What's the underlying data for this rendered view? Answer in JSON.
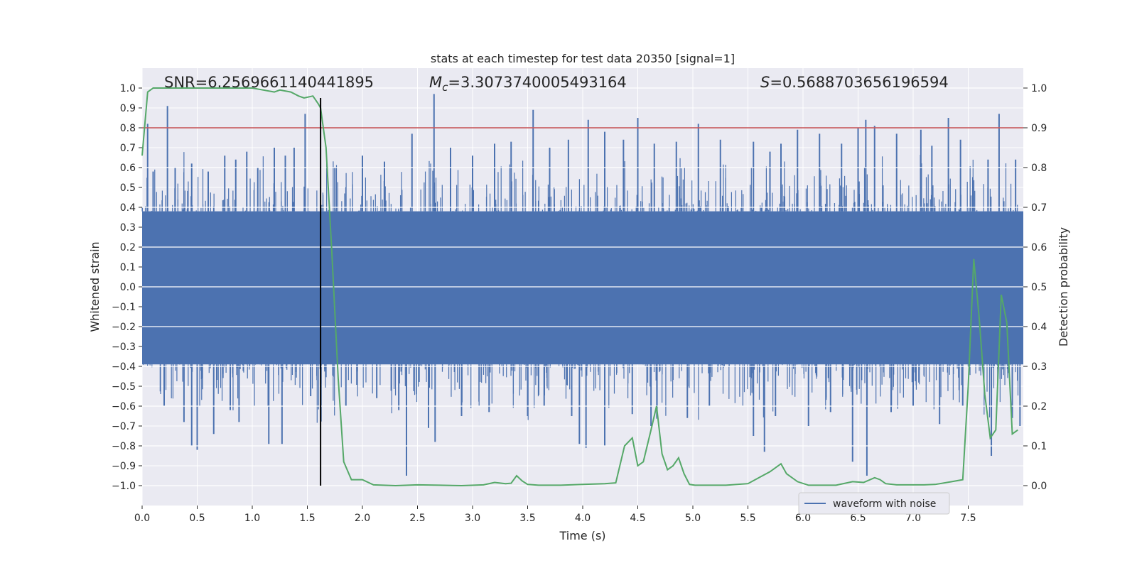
{
  "chart_data": {
    "type": "line",
    "title": "stats at each timestep for test data 20350 [signal=1]",
    "xlabel": "Time (s)",
    "ylabel": "Whitened strain",
    "y2label": "Detection probability",
    "xlim": [
      0.0,
      8.0
    ],
    "ylim": [
      -1.1,
      1.1
    ],
    "y2lim": [
      -0.05,
      1.05
    ],
    "xticks": [
      "0.0",
      "0.5",
      "1.0",
      "1.5",
      "2.0",
      "2.5",
      "3.0",
      "3.5",
      "4.0",
      "4.5",
      "5.0",
      "5.5",
      "6.0",
      "6.5",
      "7.0",
      "7.5"
    ],
    "yticks": [
      "1.0",
      "0.9",
      "0.8",
      "0.7",
      "0.6",
      "0.5",
      "0.4",
      "0.3",
      "0.2",
      "0.1",
      "0.0",
      "−0.1",
      "−0.2",
      "−0.3",
      "−0.4",
      "−0.5",
      "−0.6",
      "−0.7",
      "−0.8",
      "−0.9",
      "−1.0"
    ],
    "y2ticks": [
      "1.0",
      "0.9",
      "0.8",
      "0.7",
      "0.6",
      "0.5",
      "0.4",
      "0.3",
      "0.2",
      "0.1",
      "0.0"
    ],
    "annotations": {
      "snr": "SNR=6.2569661140441895",
      "mc_symbol": "M",
      "mc_sub": "c",
      "mc_value": "=3.3073740005493164",
      "s_symbol": "S",
      "s_value": "=0.5688703656196594"
    },
    "threshold": {
      "y2": 0.9,
      "color": "#c44e52"
    },
    "marker_time": 1.62,
    "legend": {
      "entries": [
        "waveform with noise"
      ],
      "placement": "lower-right"
    },
    "grid": true,
    "series": [
      {
        "name": "waveform with noise",
        "color": "#4c72b0",
        "rendering": "dense noise band",
        "band_upper": 0.38,
        "band_lower": -0.39,
        "spikes": [
          [
            0.05,
            0.82
          ],
          [
            0.1,
            0.58
          ],
          [
            0.23,
            0.91
          ],
          [
            0.3,
            0.6
          ],
          [
            0.45,
            0.62
          ],
          [
            0.6,
            0.58
          ],
          [
            0.75,
            0.66
          ],
          [
            0.85,
            0.64
          ],
          [
            0.95,
            0.68
          ],
          [
            1.05,
            0.6
          ],
          [
            1.2,
            0.7
          ],
          [
            1.3,
            0.66
          ],
          [
            1.38,
            0.7
          ],
          [
            1.48,
            0.87
          ],
          [
            1.75,
            0.6
          ],
          [
            2.0,
            0.66
          ],
          [
            2.2,
            0.63
          ],
          [
            2.45,
            0.77
          ],
          [
            2.65,
            0.97
          ],
          [
            2.8,
            0.7
          ],
          [
            3.0,
            0.66
          ],
          [
            3.2,
            0.72
          ],
          [
            3.35,
            0.73
          ],
          [
            3.55,
            0.89
          ],
          [
            3.7,
            0.7
          ],
          [
            3.87,
            0.74
          ],
          [
            4.05,
            0.84
          ],
          [
            4.2,
            0.78
          ],
          [
            4.37,
            0.74
          ],
          [
            4.5,
            0.85
          ],
          [
            4.65,
            0.72
          ],
          [
            4.85,
            0.73
          ],
          [
            5.05,
            0.82
          ],
          [
            5.25,
            0.74
          ],
          [
            5.55,
            0.73
          ],
          [
            5.7,
            0.68
          ],
          [
            5.8,
            0.72
          ],
          [
            5.95,
            0.79
          ],
          [
            6.15,
            0.77
          ],
          [
            6.35,
            0.72
          ],
          [
            6.5,
            0.8
          ],
          [
            6.57,
            0.84
          ],
          [
            6.65,
            0.81
          ],
          [
            6.85,
            0.77
          ],
          [
            7.07,
            0.79
          ],
          [
            7.17,
            0.71
          ],
          [
            7.32,
            0.85
          ],
          [
            7.43,
            0.74
          ],
          [
            7.68,
            0.64
          ],
          [
            7.78,
            0.87
          ],
          [
            7.93,
            0.64
          ],
          [
            0.2,
            -0.6
          ],
          [
            0.38,
            -0.68
          ],
          [
            0.45,
            -0.8
          ],
          [
            0.5,
            -0.82
          ],
          [
            0.65,
            -0.74
          ],
          [
            0.8,
            -0.62
          ],
          [
            0.88,
            -0.68
          ],
          [
            1.15,
            -0.79
          ],
          [
            1.27,
            -0.79
          ],
          [
            1.53,
            -0.55
          ],
          [
            1.85,
            -0.6
          ],
          [
            2.13,
            -0.56
          ],
          [
            2.33,
            -0.62
          ],
          [
            2.4,
            -0.95
          ],
          [
            2.6,
            -0.71
          ],
          [
            2.66,
            -0.78
          ],
          [
            2.9,
            -0.65
          ],
          [
            3.15,
            -0.63
          ],
          [
            3.5,
            -0.65
          ],
          [
            3.65,
            -0.6
          ],
          [
            3.9,
            -0.65
          ],
          [
            3.97,
            -0.79
          ],
          [
            4.03,
            -0.81
          ],
          [
            4.2,
            -0.8
          ],
          [
            4.45,
            -0.64
          ],
          [
            4.62,
            -0.7
          ],
          [
            4.95,
            -0.66
          ],
          [
            5.15,
            -0.6
          ],
          [
            5.55,
            -0.75
          ],
          [
            5.65,
            -0.83
          ],
          [
            5.75,
            -0.65
          ],
          [
            6.05,
            -0.7
          ],
          [
            6.25,
            -0.63
          ],
          [
            6.45,
            -0.88
          ],
          [
            6.58,
            -0.95
          ],
          [
            6.8,
            -0.63
          ],
          [
            7.0,
            -0.6
          ],
          [
            7.24,
            -0.69
          ],
          [
            7.45,
            -0.6
          ],
          [
            7.71,
            -0.85
          ],
          [
            7.9,
            -0.66
          ],
          [
            7.97,
            -0.7
          ]
        ]
      },
      {
        "name": "detection probability",
        "color": "#55a868",
        "axis": "y2",
        "x": [
          0.0,
          0.05,
          0.1,
          0.3,
          0.5,
          0.7,
          0.9,
          1.0,
          1.1,
          1.2,
          1.25,
          1.35,
          1.42,
          1.47,
          1.55,
          1.6,
          1.62,
          1.67,
          1.72,
          1.78,
          1.83,
          1.9,
          2.0,
          2.1,
          2.3,
          2.5,
          2.7,
          2.9,
          3.1,
          3.2,
          3.3,
          3.35,
          3.4,
          3.45,
          3.5,
          3.6,
          3.8,
          4.0,
          4.1,
          4.2,
          4.3,
          4.38,
          4.45,
          4.5,
          4.55,
          4.62,
          4.67,
          4.72,
          4.77,
          4.82,
          4.87,
          4.92,
          4.97,
          5.02,
          5.07,
          5.15,
          5.3,
          5.5,
          5.6,
          5.7,
          5.8,
          5.85,
          5.95,
          6.05,
          6.3,
          6.45,
          6.55,
          6.65,
          6.7,
          6.75,
          6.85,
          6.95,
          7.1,
          7.2,
          7.35,
          7.45,
          7.5,
          7.55,
          7.6,
          7.65,
          7.7,
          7.75,
          7.8,
          7.85,
          7.9,
          7.95
        ],
        "y": [
          0.83,
          0.99,
          1.0,
          1.0,
          1.0,
          1.0,
          1.0,
          1.0,
          0.995,
          0.99,
          0.995,
          0.99,
          0.98,
          0.975,
          0.98,
          0.96,
          0.95,
          0.85,
          0.6,
          0.27,
          0.06,
          0.015,
          0.015,
          0.002,
          0.0,
          0.002,
          0.001,
          0.0,
          0.002,
          0.008,
          0.005,
          0.006,
          0.025,
          0.012,
          0.003,
          0.001,
          0.001,
          0.003,
          0.004,
          0.005,
          0.007,
          0.1,
          0.12,
          0.05,
          0.06,
          0.14,
          0.2,
          0.08,
          0.04,
          0.05,
          0.07,
          0.03,
          0.003,
          0.001,
          0.001,
          0.001,
          0.001,
          0.005,
          0.02,
          0.035,
          0.055,
          0.03,
          0.01,
          0.001,
          0.001,
          0.01,
          0.008,
          0.02,
          0.015,
          0.005,
          0.002,
          0.002,
          0.002,
          0.003,
          0.01,
          0.015,
          0.25,
          0.57,
          0.42,
          0.23,
          0.12,
          0.14,
          0.48,
          0.41,
          0.13,
          0.14
        ]
      }
    ]
  }
}
